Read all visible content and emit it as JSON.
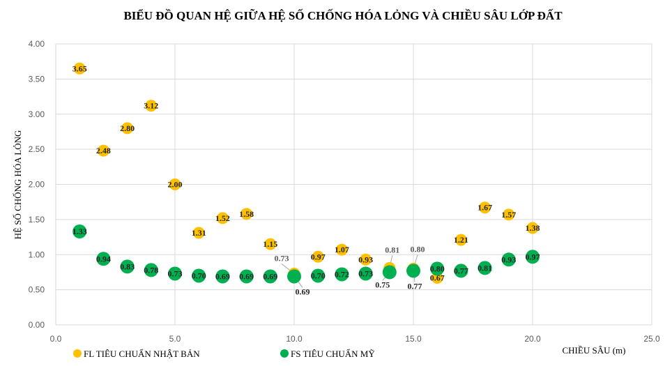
{
  "chart_data": {
    "type": "scatter",
    "title": "BIỂU ĐỒ QUAN HỆ GIỮA HỆ SỐ CHỐNG HÓA LỎNG VÀ CHIỀU SÂU LỚP ĐẤT",
    "xlabel": "CHIỀU SÂU (m)",
    "ylabel": "HỆ SỐ CHỐNG HÓA LỎNG",
    "xlim": [
      0,
      25
    ],
    "ylim": [
      0,
      4
    ],
    "x_ticks": [
      "0.0",
      "5.0",
      "10.0",
      "15.0",
      "20.0",
      "25.0"
    ],
    "y_ticks": [
      "0.00",
      "0.50",
      "1.00",
      "1.50",
      "2.00",
      "2.50",
      "3.00",
      "3.50",
      "4.00"
    ],
    "grid": true,
    "legend_position": "bottom-left",
    "series": [
      {
        "name": "FL TIÊU CHUẨN NHẬT BẢN",
        "color": "#ffc000",
        "x": [
          1,
          2,
          3,
          4,
          5,
          6,
          7,
          8,
          9,
          10,
          11,
          12,
          13,
          14,
          15,
          16,
          17,
          18,
          19,
          20
        ],
        "y": [
          3.65,
          2.48,
          2.8,
          3.12,
          2.0,
          1.31,
          1.52,
          1.58,
          1.15,
          0.73,
          0.97,
          1.07,
          0.93,
          0.81,
          0.8,
          0.67,
          1.21,
          1.67,
          1.57,
          1.38
        ],
        "labels": [
          "3.65",
          "2.48",
          "2.80",
          "3.12",
          "2.00",
          "1.31",
          "1.52",
          "1.58",
          "1.15",
          "0.73",
          "0.97",
          "1.07",
          "0.93",
          "0.81",
          "0.80",
          "0.67",
          "1.21",
          "1.67",
          "1.57",
          "1.38"
        ]
      },
      {
        "name": "FS TIÊU CHUẨN MỸ",
        "color": "#00b050",
        "x": [
          1,
          2,
          3,
          4,
          5,
          6,
          7,
          8,
          9,
          10,
          11,
          12,
          13,
          14,
          15,
          16,
          17,
          18,
          19,
          20
        ],
        "y": [
          1.33,
          0.94,
          0.83,
          0.78,
          0.73,
          0.7,
          0.69,
          0.69,
          0.69,
          0.69,
          0.7,
          0.72,
          0.73,
          0.75,
          0.77,
          0.8,
          0.77,
          0.81,
          0.93,
          0.97
        ],
        "labels": [
          "1.33",
          "0.94",
          "0.83",
          "0.78",
          "0.73",
          "0.70",
          "0.69",
          "0.69",
          "0.69",
          "0.69",
          "0.70",
          "0.72",
          "0.73",
          "0.75",
          "0.77",
          "0.80",
          "0.77",
          "0.81",
          "0.93",
          "0.97"
        ]
      }
    ]
  }
}
